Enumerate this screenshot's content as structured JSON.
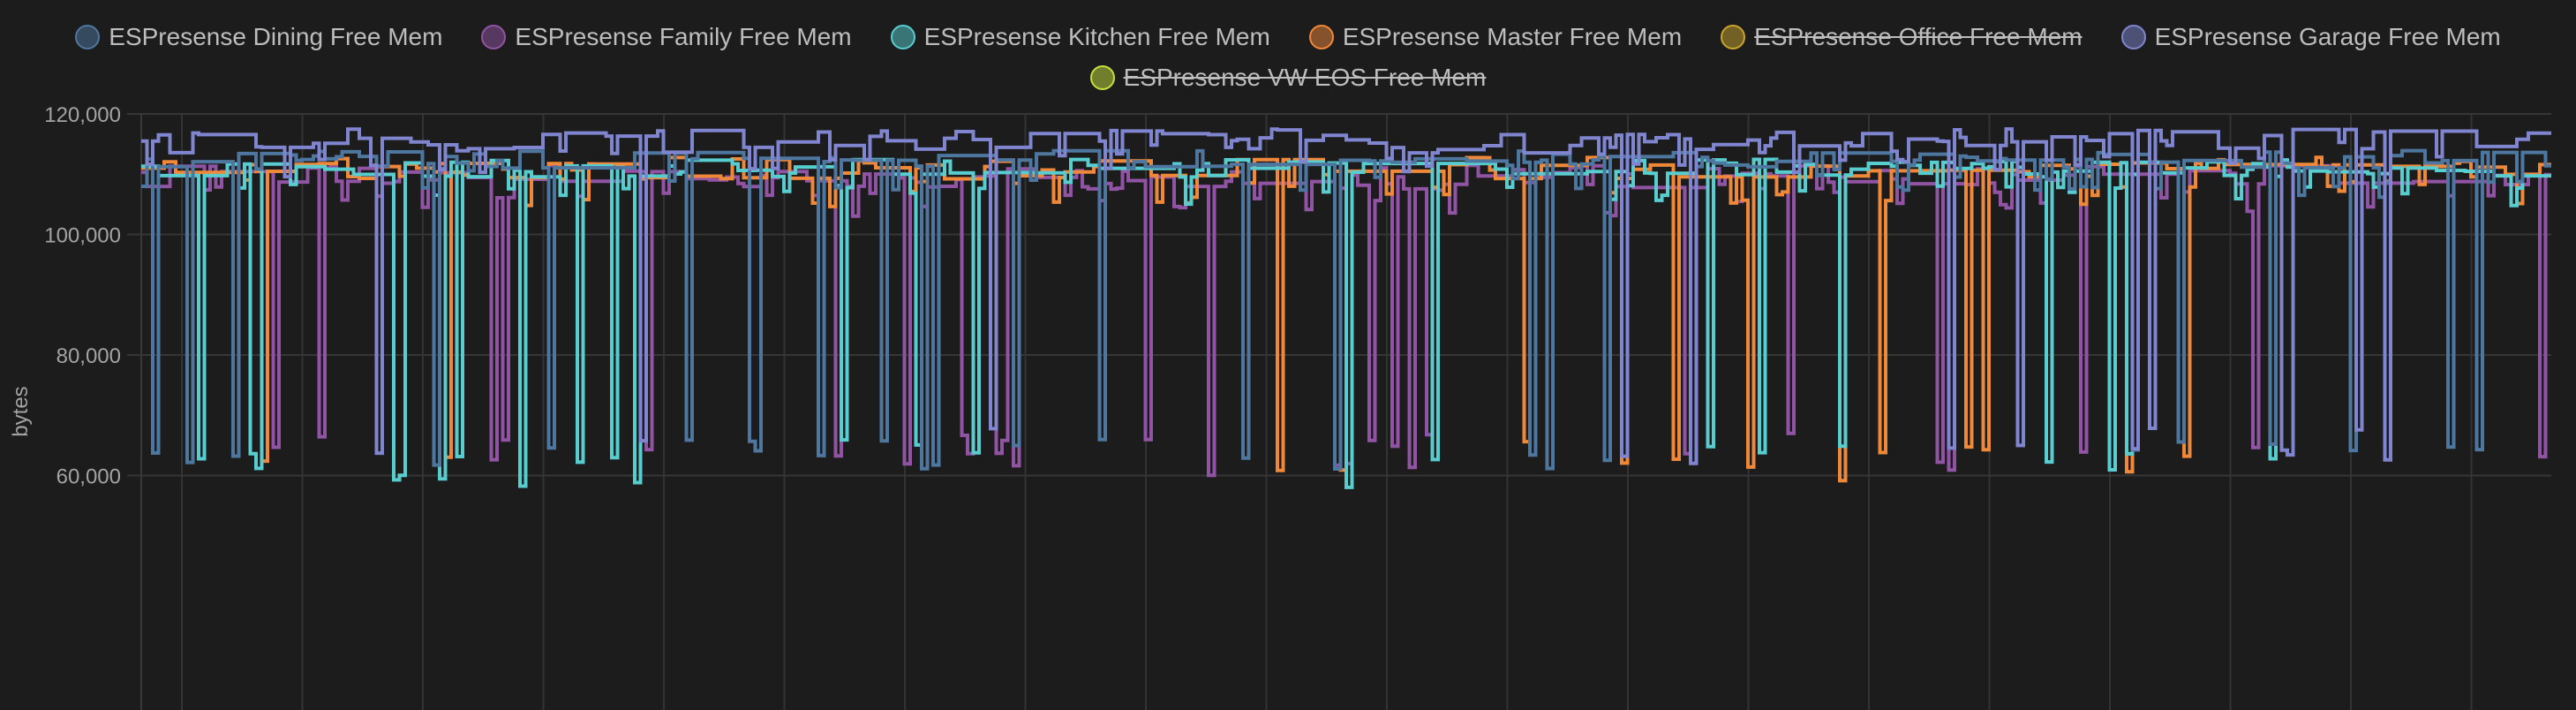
{
  "legend": [
    {
      "name": "ESPresense Dining Free Mem",
      "color": "#4e77a0",
      "hidden": false
    },
    {
      "name": "ESPresense Family Free Mem",
      "color": "#9153a3",
      "hidden": false
    },
    {
      "name": "ESPresense Kitchen Free Mem",
      "color": "#57cdd0",
      "hidden": false
    },
    {
      "name": "ESPresense Master Free Mem",
      "color": "#f0883a",
      "hidden": false
    },
    {
      "name": "ESPresense Office Free Mem",
      "color": "#c9a42b",
      "hidden": true
    },
    {
      "name": "ESPresense Garage Free Mem",
      "color": "#8085cf",
      "hidden": false
    },
    {
      "name": "ESPresense VW EOS Free Mem",
      "color": "#c5e03a",
      "hidden": true
    }
  ],
  "chart_data": {
    "type": "line",
    "step": true,
    "ylabel": "bytes",
    "ylim": [
      40500,
      120000
    ],
    "yticks": [
      120000,
      100000,
      80000,
      60000
    ],
    "ytick_labels": [
      "120,000",
      "100,000",
      "80,000",
      "60,000"
    ],
    "grid": true,
    "legend_position": "top",
    "series": [
      {
        "name": "ESPresense Garage Free Mem",
        "color": "#8085cf",
        "typical": 115500,
        "spread": 2000,
        "dip_low": 62000,
        "dip_high": 68000,
        "dip_rate": 0.05
      },
      {
        "name": "ESPresense Dining Free Mem",
        "color": "#4e77a0",
        "typical": 112500,
        "spread": 1500,
        "dip_low": 61000,
        "dip_high": 66000,
        "dip_rate": 0.06
      },
      {
        "name": "ESPresense Kitchen Free Mem",
        "color": "#57cdd0",
        "typical": 111000,
        "spread": 1500,
        "dip_low": 58000,
        "dip_high": 66000,
        "dip_rate": 0.06
      },
      {
        "name": "ESPresense Master Free Mem",
        "color": "#f0883a",
        "typical": 111000,
        "spread": 1800,
        "dip_low": 57000,
        "dip_high": 66000,
        "dip_rate": 0.05
      },
      {
        "name": "ESPresense Family Free Mem",
        "color": "#9153a3",
        "typical": 109500,
        "spread": 2000,
        "dip_low": 60000,
        "dip_high": 67000,
        "dip_rate": 0.07
      }
    ]
  }
}
